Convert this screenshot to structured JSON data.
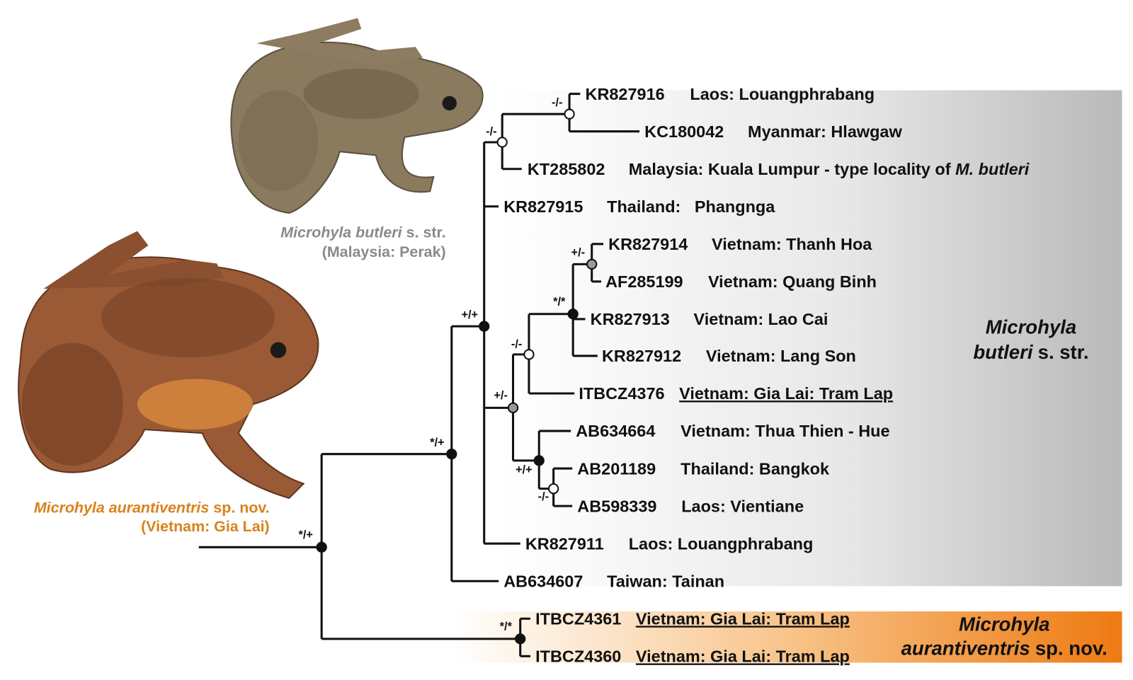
{
  "tips": [
    {
      "accession": "KR827916",
      "locality": "Laos: Louangphrabang"
    },
    {
      "accession": "KC180042",
      "locality": "Myanmar: Hlawgaw"
    },
    {
      "accession": "KT285802",
      "locality": "Malaysia: Kuala Lumpur - type locality of ",
      "locality_italic": "M. butleri"
    },
    {
      "accession": "KR827915",
      "locality": "Thailand:   Phangnga"
    },
    {
      "accession": "KR827914",
      "locality": "Vietnam: Thanh Hoa"
    },
    {
      "accession": "AF285199",
      "locality": "Vietnam: Quang Binh"
    },
    {
      "accession": "KR827913",
      "locality": "Vietnam: Lao Cai"
    },
    {
      "accession": "KR827912",
      "locality": "Vietnam: Lang Son"
    },
    {
      "accession": "ITBCZ4376",
      "locality": "Vietnam: Gia Lai: Tram Lap"
    },
    {
      "accession": "AB634664",
      "locality": "Vietnam: Thua Thien - Hue"
    },
    {
      "accession": "AB201189",
      "locality": "Thailand: Bangkok"
    },
    {
      "accession": "AB598339",
      "locality": "Laos: Vientiane"
    },
    {
      "accession": "KR827911",
      "locality": "Laos: Louangphrabang"
    },
    {
      "accession": "AB634607",
      "locality": "Taiwan: Tainan"
    },
    {
      "accession": "ITBCZ4361",
      "locality": "Vietnam: Gia Lai: Tram Lap"
    },
    {
      "accession": "ITBCZ4360",
      "locality": "Vietnam: Gia Lai: Tram Lap"
    }
  ],
  "nodes": [
    {
      "support": "-/-"
    },
    {
      "support": "-/-"
    },
    {
      "support": "+/-"
    },
    {
      "support": "*/*"
    },
    {
      "support": "-/-"
    },
    {
      "support": "-/-"
    },
    {
      "support": "+/+"
    },
    {
      "support": "+/-"
    },
    {
      "support": "+/+"
    },
    {
      "support": "*/+"
    },
    {
      "support": "*/*"
    },
    {
      "support": "*/+"
    }
  ],
  "clades": [
    {
      "genus": "Microhyla",
      "epithet": "butleri",
      "rank": "s. str."
    },
    {
      "genus": "Microhyla",
      "epithet": "aurantiventris",
      "rank": "sp. nov."
    }
  ],
  "photos": [
    {
      "species": "Microhyla butleri",
      "rank": "s. str.",
      "locality": "(Malaysia: Perak)"
    },
    {
      "species": "Microhyla aurantiventris",
      "rank": "sp. nov.",
      "locality": "(Vietnam: Gia Lai)"
    }
  ]
}
